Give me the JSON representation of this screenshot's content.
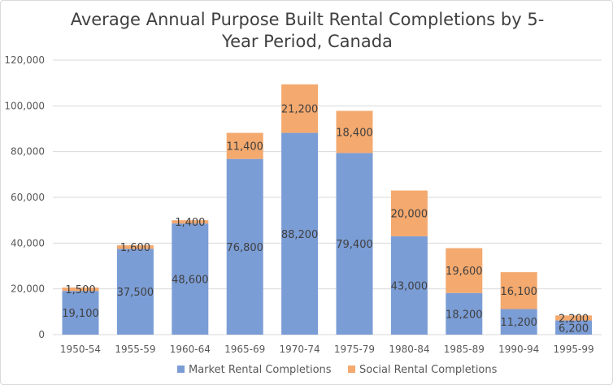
{
  "chart_data": {
    "type": "bar",
    "stacked": true,
    "title_lines": [
      "Average Annual Purpose Built Rental Completions by 5-",
      "Year Period, Canada"
    ],
    "xlabel": "",
    "ylabel": "",
    "ylim": [
      0,
      120000
    ],
    "yticks": [
      0,
      20000,
      40000,
      60000,
      80000,
      100000,
      120000
    ],
    "ytick_labels": [
      "0",
      "20,000",
      "40,000",
      "60,000",
      "80,000",
      "100,000",
      "120,000"
    ],
    "grid": true,
    "legend_position": "bottom",
    "categories": [
      "1950-54",
      "1955-59",
      "1960-64",
      "1965-69",
      "1970-74",
      "1975-79",
      "1980-84",
      "1985-89",
      "1990-94",
      "1995-99"
    ],
    "series": [
      {
        "name": "Market Rental Completions",
        "color": "#7b9dd6",
        "values": [
          19100,
          37500,
          48600,
          76800,
          88200,
          79400,
          43000,
          18200,
          11200,
          6200
        ],
        "labels": [
          "19,100",
          "37,500",
          "48,600",
          "76,800",
          "88,200",
          "79,400",
          "43,000",
          "18,200",
          "11,200",
          "6,200"
        ]
      },
      {
        "name": "Social Rental Completions",
        "color": "#f4a96e",
        "values": [
          1500,
          1600,
          1400,
          11400,
          21200,
          18400,
          20000,
          19600,
          16100,
          2200
        ],
        "labels": [
          "1,500",
          "1,600",
          "1,400",
          "11,400",
          "21,200",
          "18,400",
          "20,000",
          "19,600",
          "16,100",
          "2,200"
        ]
      }
    ]
  }
}
